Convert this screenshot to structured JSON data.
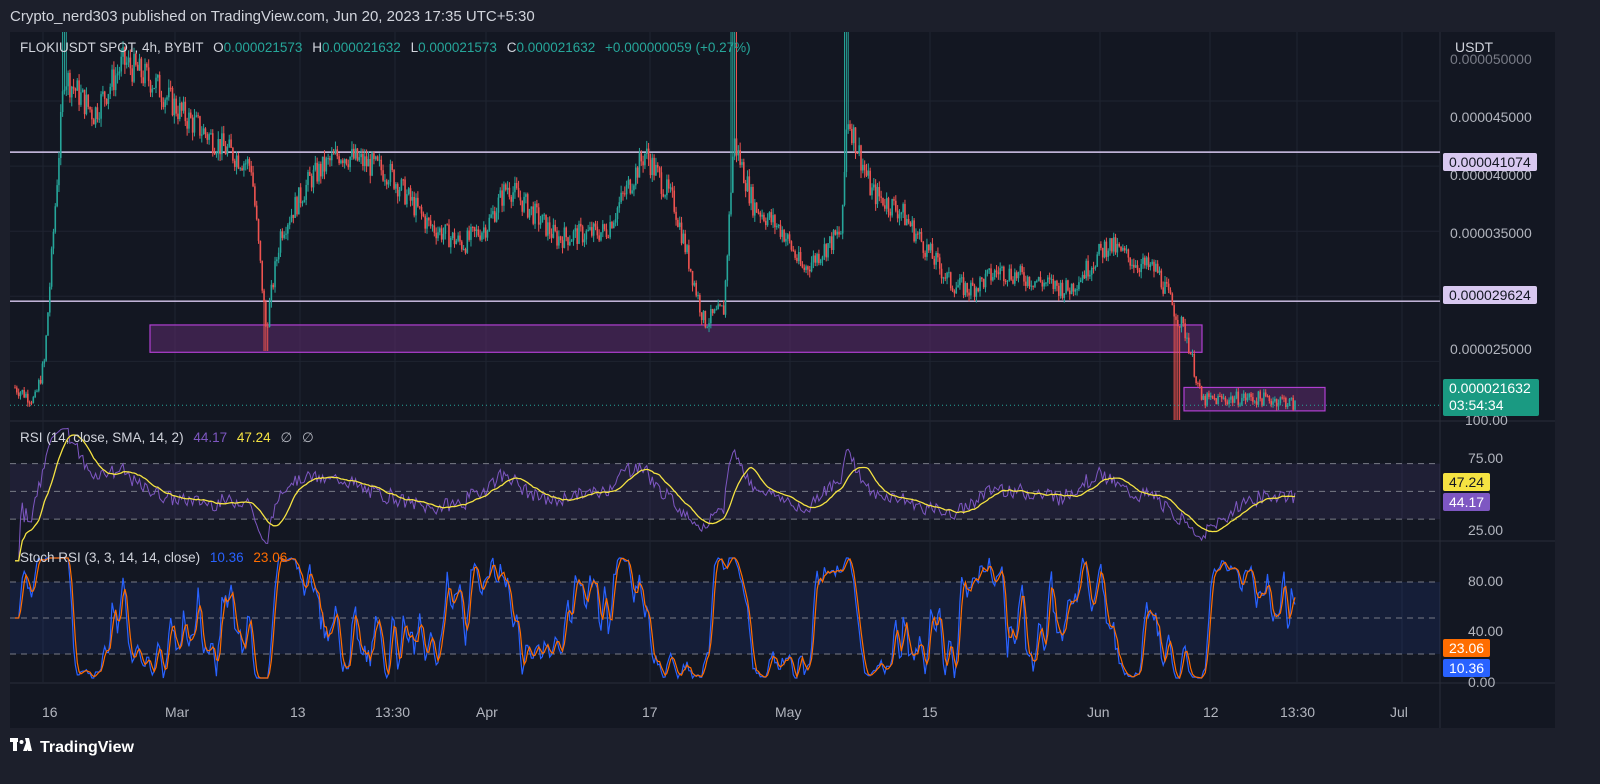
{
  "header": {
    "publisher": "Crypto_nerd303 published on TradingView.com, Jun 20, 2023 17:35 UTC+5:30"
  },
  "legend": {
    "symbol": "FLOKIUSDT SPOT, 4h, BYBIT",
    "o_label": "O",
    "o": "0.000021573",
    "h_label": "H",
    "h": "0.000021632",
    "l_label": "L",
    "l": "0.000021573",
    "c_label": "C",
    "c": "0.000021632",
    "change": "+0.000000059 (+0.27%)"
  },
  "rsi_legend": {
    "label": "RSI (14, close, SMA, 14, 2)",
    "rsi": "44.17",
    "sma": "47.24",
    "extra1": "∅",
    "extra2": "∅"
  },
  "stoch_legend": {
    "label": "Stoch RSI (3, 3, 14, 14, close)",
    "k": "10.36",
    "d": "23.06"
  },
  "price_axis": {
    "currency": "USDT",
    "ticks": [
      "0.000050000",
      "0.000045000",
      "0.000040000",
      "0.000035000",
      "0.000025000"
    ],
    "top_tick": "0.000050000",
    "bottom_tick": "100.00"
  },
  "rsi_axis": {
    "ticks": [
      "75.00",
      "25.00"
    ]
  },
  "stoch_axis": {
    "ticks": [
      "80.00",
      "40.00",
      "0.00"
    ]
  },
  "levels": {
    "resistance": "0.000041074",
    "support": "0.000029624"
  },
  "current_price": {
    "value": "0.000021632",
    "countdown": "03:54:34"
  },
  "rsi_tags": {
    "sma": "47.24",
    "rsi": "44.17"
  },
  "stoch_tags": {
    "d": "23.06",
    "k": "10.36"
  },
  "time_axis": {
    "ticks": [
      "16",
      "Mar",
      "13",
      "13:30",
      "Apr",
      "17",
      "May",
      "15",
      "Jun",
      "12",
      "13:30",
      "Jul"
    ]
  },
  "footer": {
    "brand": "TradingView",
    "logo_icon": "tradingview-logo-icon"
  },
  "colors": {
    "up": "#26a69a",
    "down": "#ef5350",
    "rsi": "#7e57c2",
    "rsi_sma": "#f5e342",
    "stoch_k": "#2962ff",
    "stoch_d": "#ff6d00",
    "level_line": "#d8c8f0",
    "zone_fill": "#5c2c6e",
    "zone_border": "#b03fd1",
    "bg": "#131722"
  },
  "chart_data": [
    {
      "type": "candlestick",
      "title": "FLOKIUSDT SPOT, 4h, BYBIT",
      "x_ticks": [
        "16",
        "Mar",
        "13",
        "13:30",
        "Apr",
        "17",
        "May",
        "15",
        "Jun",
        "12",
        "13:30",
        "Jul"
      ],
      "ylim": [
        2.05e-05,
        5.03e-05
      ],
      "horizontal_levels": [
        4.1074e-05,
        2.9624e-05
      ],
      "zones": [
        {
          "from_tick": "Mar",
          "to_tick": "Jun",
          "y_low": 2.57e-05,
          "y_high": 2.78e-05
        },
        {
          "from_tick": "12",
          "to_tick": "13:30",
          "y_low": 2.12e-05,
          "y_high": 2.3e-05
        }
      ],
      "close_anchors": [
        [
          0.0,
          2.3e-05
        ],
        [
          0.02,
          2.2e-05
        ],
        [
          0.03,
          2.5e-05
        ],
        [
          0.05,
          4.7e-05
        ],
        [
          0.08,
          4.4e-05
        ],
        [
          0.11,
          4.8e-05
        ],
        [
          0.14,
          4.65e-05
        ],
        [
          0.17,
          4.4e-05
        ],
        [
          0.21,
          4.15e-05
        ],
        [
          0.24,
          4e-05
        ],
        [
          0.255,
          2.75e-05
        ],
        [
          0.27,
          3.5e-05
        ],
        [
          0.3,
          3.9e-05
        ],
        [
          0.33,
          4.1e-05
        ],
        [
          0.38,
          3.95e-05
        ],
        [
          0.42,
          3.55e-05
        ],
        [
          0.455,
          3.4e-05
        ],
        [
          0.48,
          3.55e-05
        ],
        [
          0.5,
          3.85e-05
        ],
        [
          0.55,
          3.45e-05
        ],
        [
          0.6,
          3.5e-05
        ],
        [
          0.64,
          4.1e-05
        ],
        [
          0.67,
          3.7e-05
        ],
        [
          0.7,
          2.8e-05
        ],
        [
          0.72,
          2.9e-05
        ],
        [
          0.73,
          4.2e-05
        ],
        [
          0.75,
          3.7e-05
        ],
        [
          0.78,
          3.5e-05
        ],
        [
          0.8,
          3.2e-05
        ],
        [
          0.84,
          3.5e-05
        ],
        [
          0.845,
          4.4e-05
        ],
        [
          0.87,
          3.8e-05
        ],
        [
          0.9,
          3.65e-05
        ],
        [
          0.95,
          3.1e-05
        ],
        [
          0.97,
          3.05e-05
        ],
        [
          1.0,
          3.2e-05
        ]
      ],
      "close_anchors_note_tail": [
        [
          1.07,
          3.05e-05
        ],
        [
          1.11,
          3.4e-05
        ],
        [
          1.14,
          3.25e-05
        ],
        [
          1.16,
          3.2e-05
        ],
        [
          1.18,
          2.85e-05
        ],
        [
          1.19,
          2.7e-05
        ],
        [
          1.205,
          2.2e-05
        ],
        [
          1.25,
          2.22e-05
        ],
        [
          1.29,
          2.2e-05
        ],
        [
          1.3,
          2.16e-05
        ]
      ]
    },
    {
      "type": "line",
      "title": "RSI (14, close, SMA, 14, 2)",
      "ylim": [
        15,
        100
      ],
      "y_ticks": [
        75,
        25
      ],
      "series": [
        {
          "name": "RSI",
          "last": 44.17
        },
        {
          "name": "SMA",
          "last": 47.24
        }
      ]
    },
    {
      "type": "line",
      "title": "Stoch RSI (3, 3, 14, 14, close)",
      "ylim": [
        0,
        100
      ],
      "y_ticks": [
        80,
        40,
        0
      ],
      "series": [
        {
          "name": "K",
          "last": 10.36
        },
        {
          "name": "D",
          "last": 23.06
        }
      ]
    }
  ]
}
